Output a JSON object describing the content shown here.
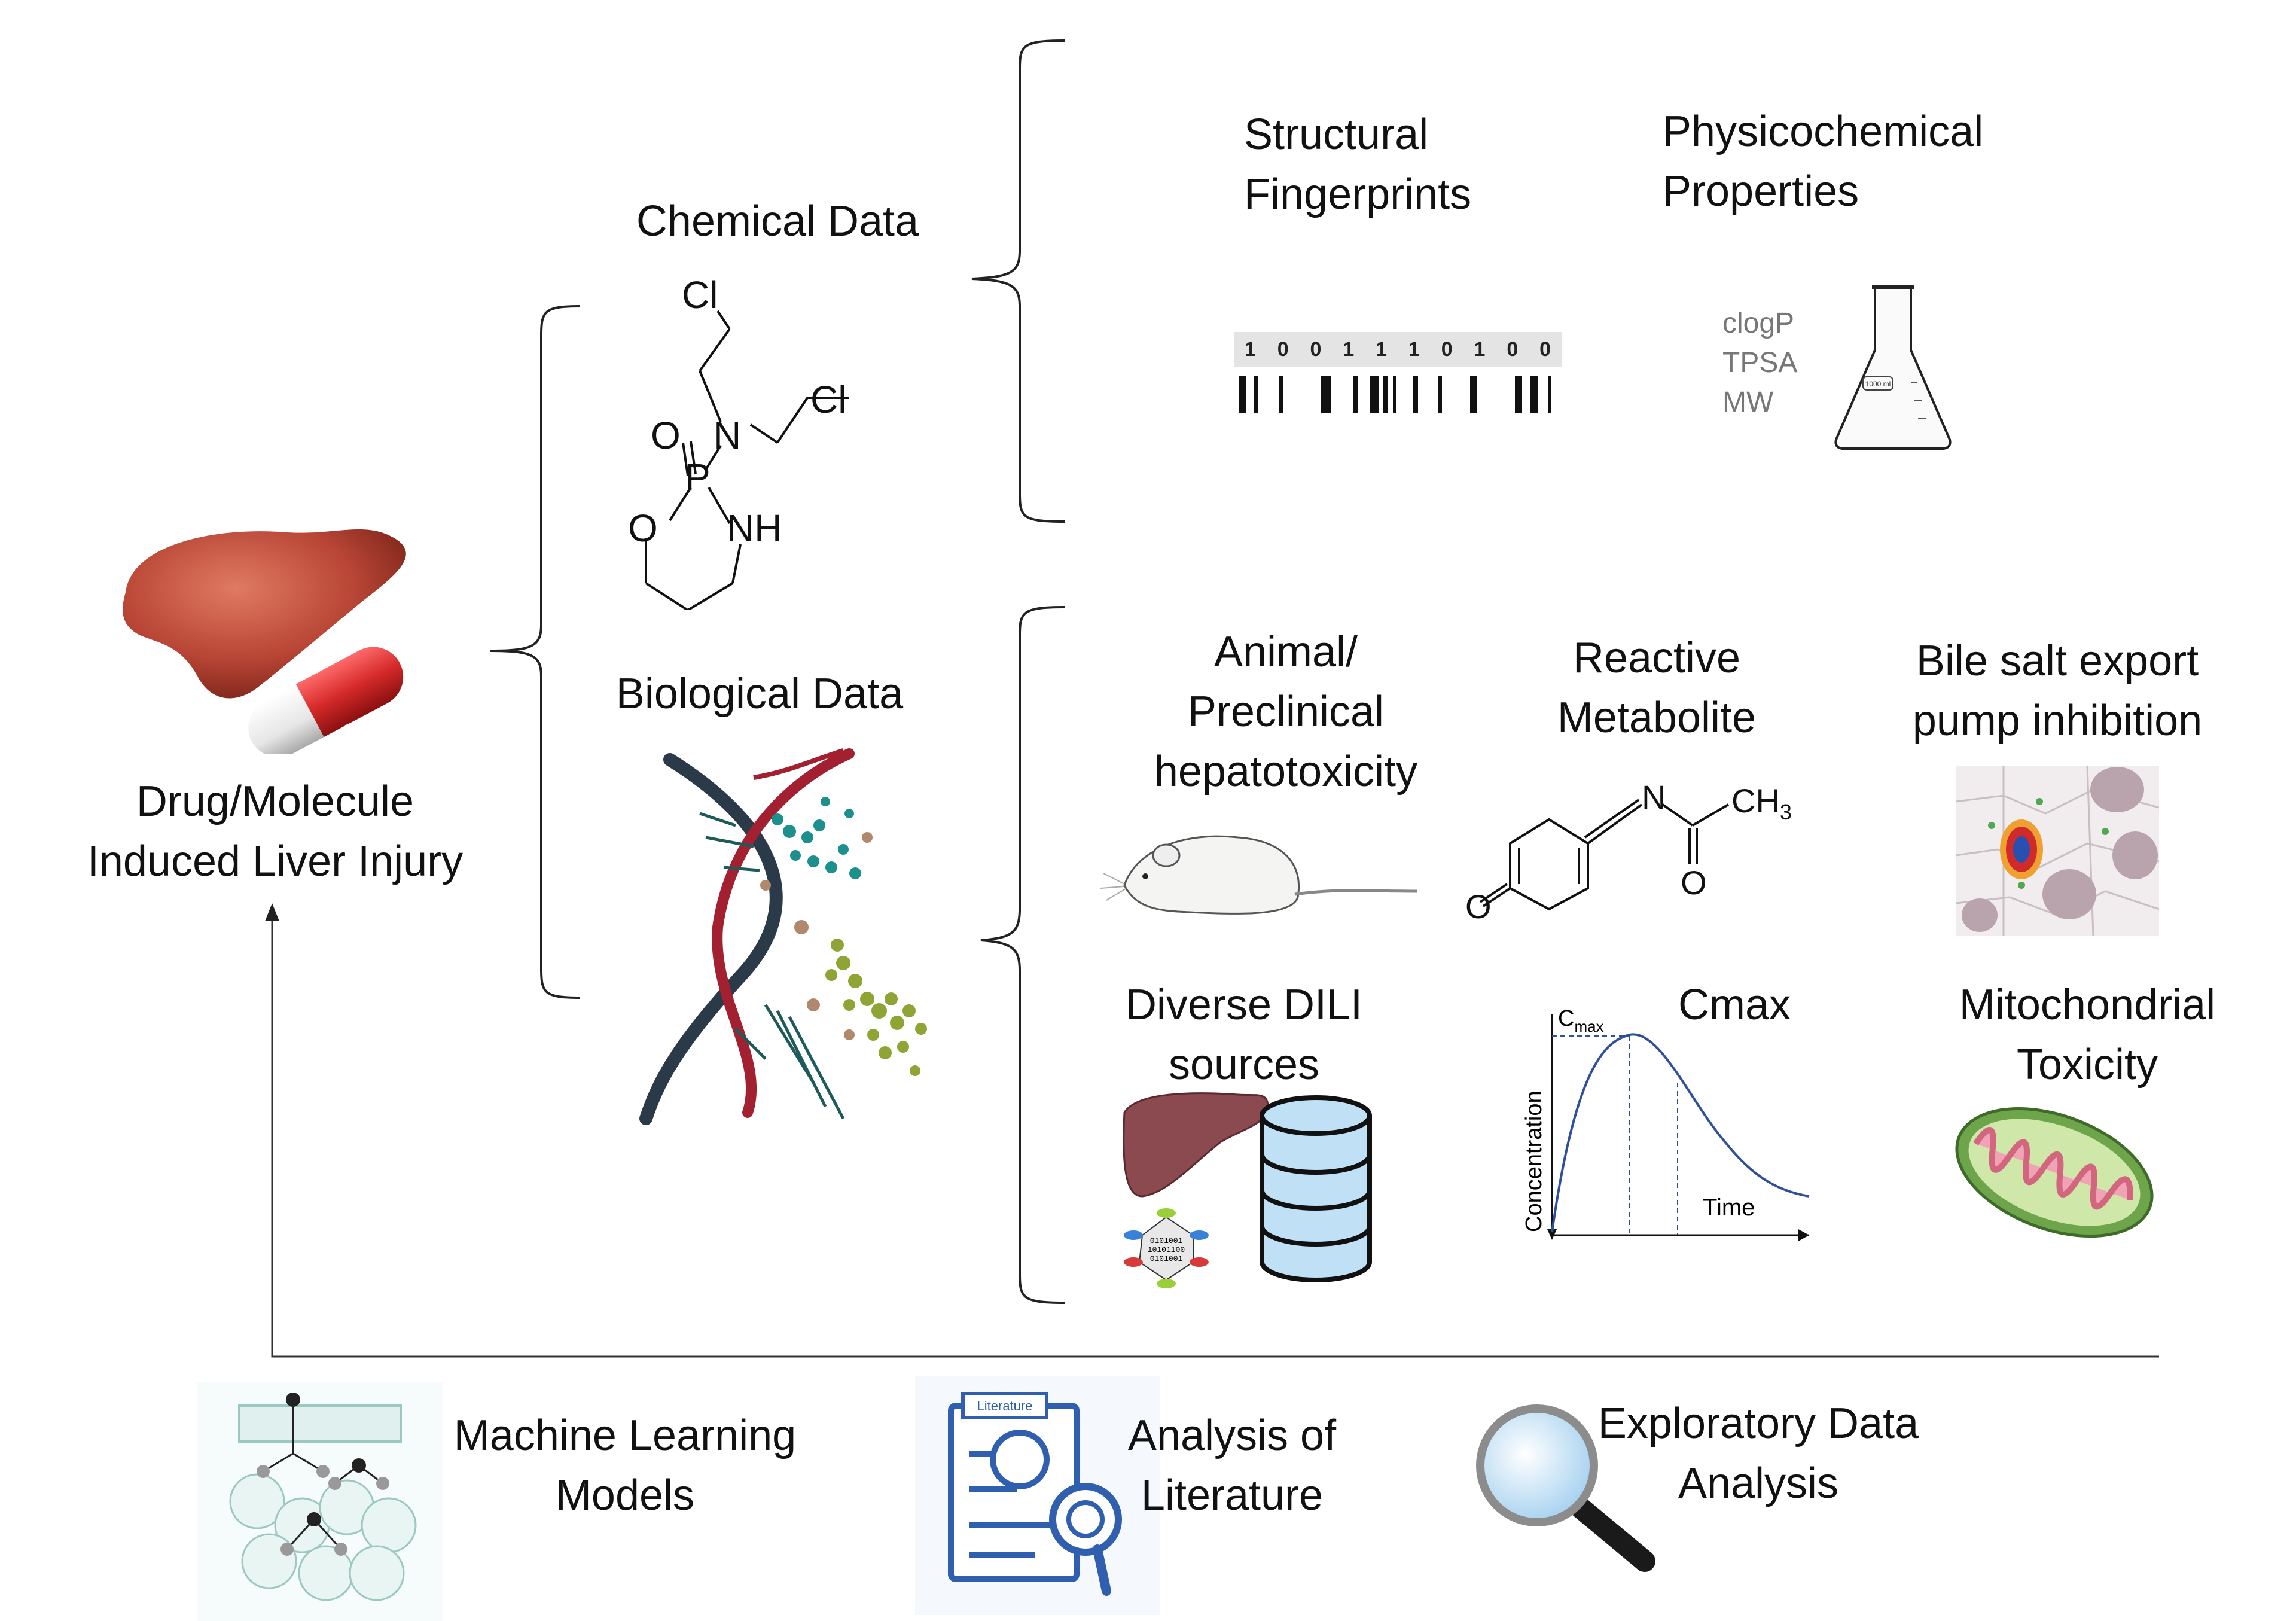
{
  "root": {
    "label": "Drug/Molecule\nInduced Liver Injury"
  },
  "chemical": {
    "title": "Chemical Data",
    "molecule_atoms": {
      "cl1": "Cl",
      "cl2": "Cl",
      "o_double": "O",
      "n": "N",
      "p": "P",
      "o_ring": "O",
      "nh": "NH"
    },
    "structural": {
      "label": "Structural\nFingerprints",
      "bits": [
        "1",
        "0",
        "0",
        "1",
        "1",
        "1",
        "0",
        "1",
        "0",
        "0"
      ]
    },
    "physchem": {
      "label": "Physicochemical\nProperties",
      "props": [
        "clogP",
        "TPSA",
        "MW"
      ],
      "flask_label": "1000 ml"
    }
  },
  "biological": {
    "title": "Biological Data",
    "items": {
      "animal": "Animal/\nPreclinical\nhepatotoxicity",
      "reactive": "Reactive\nMetabolite",
      "bsep": "Bile salt export\npump inhibition",
      "dili": "Diverse DILI\nsources",
      "cmax": "Cmax",
      "mito": "Mitochondrial\nToxicity"
    },
    "metabolite_atoms": {
      "n": "N",
      "ch3": "CH",
      "ch3_sub": "3",
      "o1": "O",
      "o2": "O"
    },
    "pk_chart": {
      "cmax_label": "C",
      "cmax_sub": "max",
      "ylabel": "Concentration",
      "xlabel": "Time"
    },
    "db_binary": [
      "0101001",
      "10101100",
      "0101001"
    ]
  },
  "methods": {
    "ml": "Machine Learning\nModels",
    "literature": "Analysis of\nLiterature",
    "literature_tag": "Literature",
    "eda": "Exploratory Data\nAnalysis"
  },
  "colors": {
    "liver": "#b84535",
    "capsule_red": "#d62a2a",
    "dna_red": "#a32030",
    "dna_dark": "#2b3a48",
    "teal": "#1d8f8c",
    "olive": "#8ea535",
    "db_blue": "#bfe0f5",
    "line": "#222222"
  }
}
